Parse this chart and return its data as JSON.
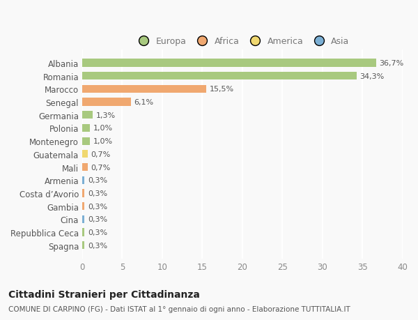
{
  "categories": [
    "Spagna",
    "Repubblica Ceca",
    "Cina",
    "Gambia",
    "Costa d’Avorio",
    "Armenia",
    "Mali",
    "Guatemala",
    "Montenegro",
    "Polonia",
    "Germania",
    "Senegal",
    "Marocco",
    "Romania",
    "Albania"
  ],
  "values": [
    0.3,
    0.3,
    0.3,
    0.3,
    0.3,
    0.3,
    0.7,
    0.7,
    1.0,
    1.0,
    1.3,
    6.1,
    15.5,
    34.3,
    36.7
  ],
  "labels": [
    "0,3%",
    "0,3%",
    "0,3%",
    "0,3%",
    "0,3%",
    "0,3%",
    "0,7%",
    "0,7%",
    "1,0%",
    "1,0%",
    "1,3%",
    "6,1%",
    "15,5%",
    "34,3%",
    "36,7%"
  ],
  "colors": [
    "#a8c97f",
    "#a8c97f",
    "#7bafd4",
    "#f0a870",
    "#f0a870",
    "#7bafd4",
    "#f0a870",
    "#f0d870",
    "#a8c97f",
    "#a8c97f",
    "#a8c97f",
    "#f0a870",
    "#f0a870",
    "#a8c97f",
    "#a8c97f"
  ],
  "legend": [
    {
      "label": "Europa",
      "color": "#a8c97f"
    },
    {
      "label": "Africa",
      "color": "#f0a870"
    },
    {
      "label": "America",
      "color": "#f0d870"
    },
    {
      "label": "Asia",
      "color": "#7bafd4"
    }
  ],
  "title": "Cittadini Stranieri per Cittadinanza",
  "subtitle": "COMUNE DI CARPINO (FG) - Dati ISTAT al 1° gennaio di ogni anno - Elaborazione TUTTITALIA.IT",
  "xlim": [
    0,
    40
  ],
  "xticks": [
    0,
    5,
    10,
    15,
    20,
    25,
    30,
    35,
    40
  ],
  "background_color": "#f9f9f9",
  "grid_color": "#ffffff",
  "bar_height": 0.6
}
